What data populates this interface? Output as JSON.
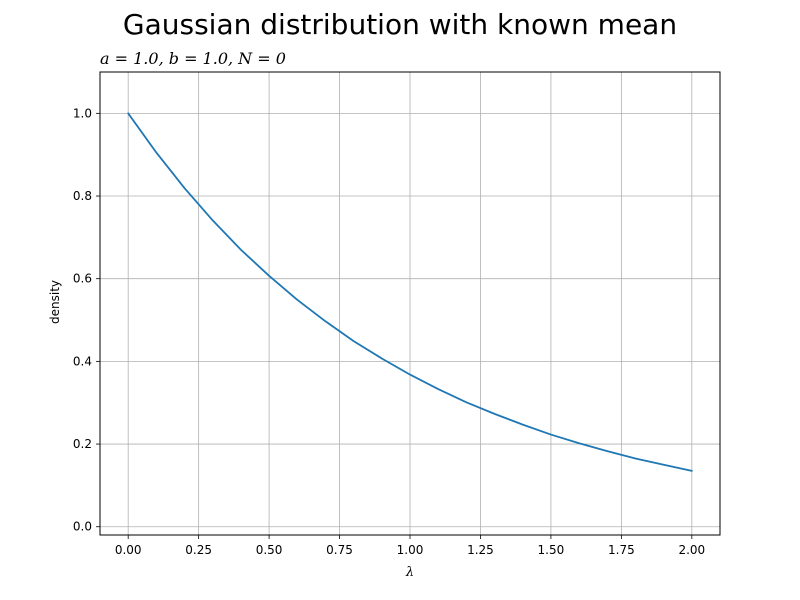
{
  "chart_data": {
    "type": "line",
    "title": "Gaussian distribution with known mean",
    "subtitle": "a = 1.0, b = 1.0, N = 0",
    "xlabel": "λ",
    "ylabel": "density",
    "xlim": [
      -0.1,
      2.1
    ],
    "ylim": [
      -0.02,
      1.1
    ],
    "xticks": [
      0.0,
      0.25,
      0.5,
      0.75,
      1.0,
      1.25,
      1.5,
      1.75,
      2.0
    ],
    "xtick_labels": [
      "0.00",
      "0.25",
      "0.50",
      "0.75",
      "1.00",
      "1.25",
      "1.50",
      "1.75",
      "2.00"
    ],
    "yticks": [
      0.0,
      0.2,
      0.4,
      0.6,
      0.8,
      1.0
    ],
    "ytick_labels": [
      "0.0",
      "0.2",
      "0.4",
      "0.6",
      "0.8",
      "1.0"
    ],
    "grid": true,
    "series": [
      {
        "color": "#1f77b4",
        "x": [
          0.0,
          0.1,
          0.2,
          0.3,
          0.4,
          0.5,
          0.6,
          0.7,
          0.8,
          0.9,
          1.0,
          1.1,
          1.2,
          1.3,
          1.4,
          1.5,
          1.6,
          1.7,
          1.8,
          1.9,
          2.0
        ],
        "y": [
          1.0,
          0.905,
          0.819,
          0.741,
          0.67,
          0.607,
          0.549,
          0.497,
          0.449,
          0.407,
          0.368,
          0.333,
          0.301,
          0.273,
          0.247,
          0.223,
          0.202,
          0.183,
          0.165,
          0.15,
          0.135
        ]
      }
    ]
  }
}
